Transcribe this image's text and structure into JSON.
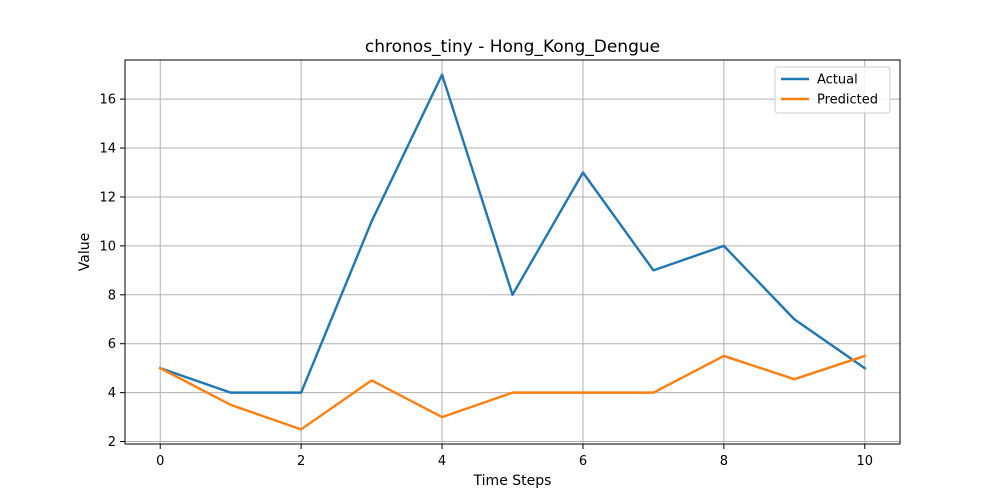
{
  "chart_data": {
    "type": "line",
    "title": "chronos_tiny - Hong_Kong_Dengue",
    "xlabel": "Time Steps",
    "ylabel": "Value",
    "x": [
      0,
      1,
      2,
      3,
      4,
      5,
      6,
      7,
      8,
      9,
      10
    ],
    "xlim": [
      -0.5,
      10.5
    ],
    "ylim": [
      1.9,
      17.6
    ],
    "xticks": [
      0,
      2,
      4,
      6,
      8,
      10
    ],
    "yticks": [
      2,
      4,
      6,
      8,
      10,
      12,
      14,
      16
    ],
    "grid": true,
    "legend_position": "top-right",
    "series": [
      {
        "name": "Actual",
        "color": "#1f77b4",
        "values": [
          5,
          4,
          4,
          11,
          17,
          8,
          13,
          9,
          10,
          7,
          5
        ]
      },
      {
        "name": "Predicted",
        "color": "#ff7f0e",
        "values": [
          5,
          3.5,
          2.5,
          4.5,
          3,
          4,
          4,
          4,
          5.5,
          4.55,
          5.5
        ]
      }
    ]
  }
}
